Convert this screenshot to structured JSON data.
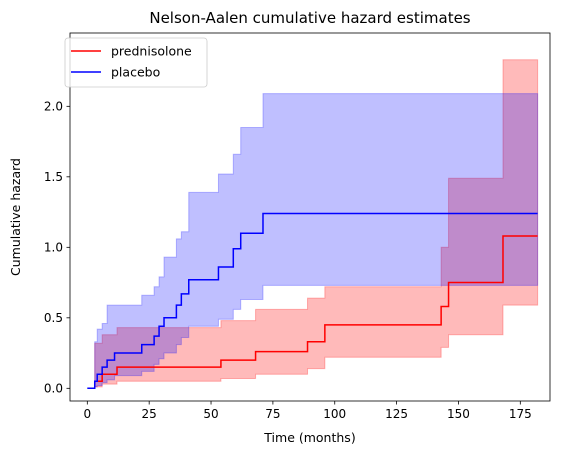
{
  "chart_data": {
    "type": "line",
    "title": "Nelson-Aalen cumulative hazard estimates",
    "xlabel": "Time (months)",
    "ylabel": "Cumulative hazard",
    "xlim": [
      -7,
      187
    ],
    "ylim": [
      -0.09,
      2.52
    ],
    "xticks": [
      0,
      25,
      50,
      75,
      100,
      125,
      150,
      175
    ],
    "xtick_labels": [
      "0",
      "25",
      "50",
      "75",
      "100",
      "125",
      "150",
      "175"
    ],
    "yticks": [
      0.0,
      0.5,
      1.0,
      1.5,
      2.0
    ],
    "ytick_labels": [
      "0.0",
      "0.5",
      "1.0",
      "1.5",
      "2.0"
    ],
    "grid": false,
    "legend_position": "top-left",
    "series": [
      {
        "name": "prednisolone",
        "color": "#ff0000",
        "band_color": "#ff0000",
        "band_opacity": 0.27,
        "steps": [
          [
            2,
            0.0
          ],
          [
            3,
            0.05
          ],
          [
            6,
            0.1
          ],
          [
            12,
            0.15
          ],
          [
            54,
            0.2
          ],
          [
            68,
            0.26
          ],
          [
            89,
            0.33
          ],
          [
            96,
            0.45
          ],
          [
            143,
            0.58
          ],
          [
            146,
            0.75
          ],
          [
            168,
            1.08
          ],
          [
            182,
            1.08
          ]
        ],
        "ci_lower": [
          [
            2,
            0.0
          ],
          [
            3,
            0.01
          ],
          [
            6,
            0.03
          ],
          [
            12,
            0.05
          ],
          [
            54,
            0.07
          ],
          [
            68,
            0.1
          ],
          [
            89,
            0.14
          ],
          [
            96,
            0.22
          ],
          [
            143,
            0.29
          ],
          [
            146,
            0.38
          ],
          [
            168,
            0.59
          ],
          [
            182,
            0.59
          ]
        ],
        "ci_upper": [
          [
            2,
            0.0
          ],
          [
            3,
            0.32
          ],
          [
            6,
            0.38
          ],
          [
            12,
            0.43
          ],
          [
            54,
            0.48
          ],
          [
            68,
            0.56
          ],
          [
            89,
            0.64
          ],
          [
            96,
            0.72
          ],
          [
            143,
            1.0
          ],
          [
            146,
            1.49
          ],
          [
            168,
            2.33
          ],
          [
            182,
            2.33
          ]
        ]
      },
      {
        "name": "placebo",
        "color": "#0000ff",
        "band_color": "#0000ff",
        "band_opacity": 0.25,
        "steps": [
          [
            0,
            0.0
          ],
          [
            3,
            0.05
          ],
          [
            4,
            0.1
          ],
          [
            6,
            0.15
          ],
          [
            8,
            0.2
          ],
          [
            11,
            0.25
          ],
          [
            22,
            0.31
          ],
          [
            27,
            0.37
          ],
          [
            29,
            0.44
          ],
          [
            31,
            0.5
          ],
          [
            36,
            0.59
          ],
          [
            38,
            0.67
          ],
          [
            41,
            0.77
          ],
          [
            53,
            0.86
          ],
          [
            59,
            0.99
          ],
          [
            62,
            1.1
          ],
          [
            71,
            1.24
          ],
          [
            182,
            1.24
          ]
        ],
        "ci_lower": [
          [
            0,
            0.0
          ],
          [
            3,
            0.01
          ],
          [
            4,
            0.02
          ],
          [
            6,
            0.04
          ],
          [
            8,
            0.06
          ],
          [
            11,
            0.09
          ],
          [
            22,
            0.12
          ],
          [
            27,
            0.17
          ],
          [
            29,
            0.21
          ],
          [
            31,
            0.25
          ],
          [
            36,
            0.31
          ],
          [
            38,
            0.36
          ],
          [
            41,
            0.44
          ],
          [
            53,
            0.49
          ],
          [
            59,
            0.56
          ],
          [
            62,
            0.63
          ],
          [
            71,
            0.73
          ],
          [
            182,
            0.73
          ]
        ],
        "ci_upper": [
          [
            0,
            0.0
          ],
          [
            3,
            0.33
          ],
          [
            4,
            0.42
          ],
          [
            6,
            0.46
          ],
          [
            8,
            0.59
          ],
          [
            11,
            0.59
          ],
          [
            22,
            0.66
          ],
          [
            27,
            0.72
          ],
          [
            29,
            0.79
          ],
          [
            31,
            0.93
          ],
          [
            36,
            1.06
          ],
          [
            38,
            1.11
          ],
          [
            41,
            1.39
          ],
          [
            53,
            1.52
          ],
          [
            59,
            1.66
          ],
          [
            62,
            1.85
          ],
          [
            71,
            2.09
          ],
          [
            182,
            2.09
          ]
        ]
      }
    ]
  }
}
